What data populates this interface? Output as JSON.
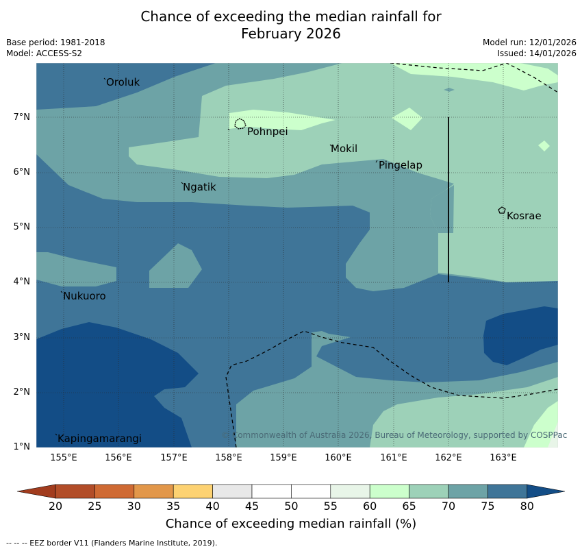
{
  "title": {
    "line1": "Chance of exceeding the median rainfall for",
    "line2": "February 2026"
  },
  "meta": {
    "base_period": "Base period: 1981-2018",
    "model": "Model: ACCESS-S2",
    "model_run": "Model run: 12/01/2026",
    "issued": "Issued: 14/01/2026"
  },
  "map": {
    "y_axis_labels": [
      "7°N",
      "6°N",
      "5°N",
      "4°N",
      "3°N",
      "2°N",
      "1°N"
    ],
    "x_axis_labels": [
      "155°E",
      "156°E",
      "157°E",
      "158°E",
      "159°E",
      "160°E",
      "161°E",
      "162°E",
      "163°E"
    ],
    "places": [
      {
        "name": "Oroluk"
      },
      {
        "name": "Pohnpei"
      },
      {
        "name": "Mokil"
      },
      {
        "name": "Pingelap"
      },
      {
        "name": "Ngatik"
      },
      {
        "name": "Kosrae"
      },
      {
        "name": "Nukuoro"
      },
      {
        "name": "Kapingamarangi"
      }
    ],
    "copyright": "© Commonwealth of Australia 2026, Bureau of Meteorology, supported by COSPPac"
  },
  "colorbar": {
    "ticks": [
      "20",
      "25",
      "30",
      "35",
      "40",
      "45",
      "50",
      "55",
      "60",
      "65",
      "70",
      "75",
      "80"
    ],
    "colors": [
      "#a23c1e",
      "#b24d28",
      "#cf6a33",
      "#e2974a",
      "#fdd272",
      "#e8e8e8",
      "#ffffff",
      "#ffffff",
      "#e8f5e8",
      "#ccffcc",
      "#9dd1b8",
      "#6da3a6",
      "#3f7598",
      "#134d86"
    ],
    "label": "Chance of exceeding median rainfall (%)"
  },
  "footer": "--  --  -- EEZ border V11 (Flanders Marine Institute, 2019)."
}
